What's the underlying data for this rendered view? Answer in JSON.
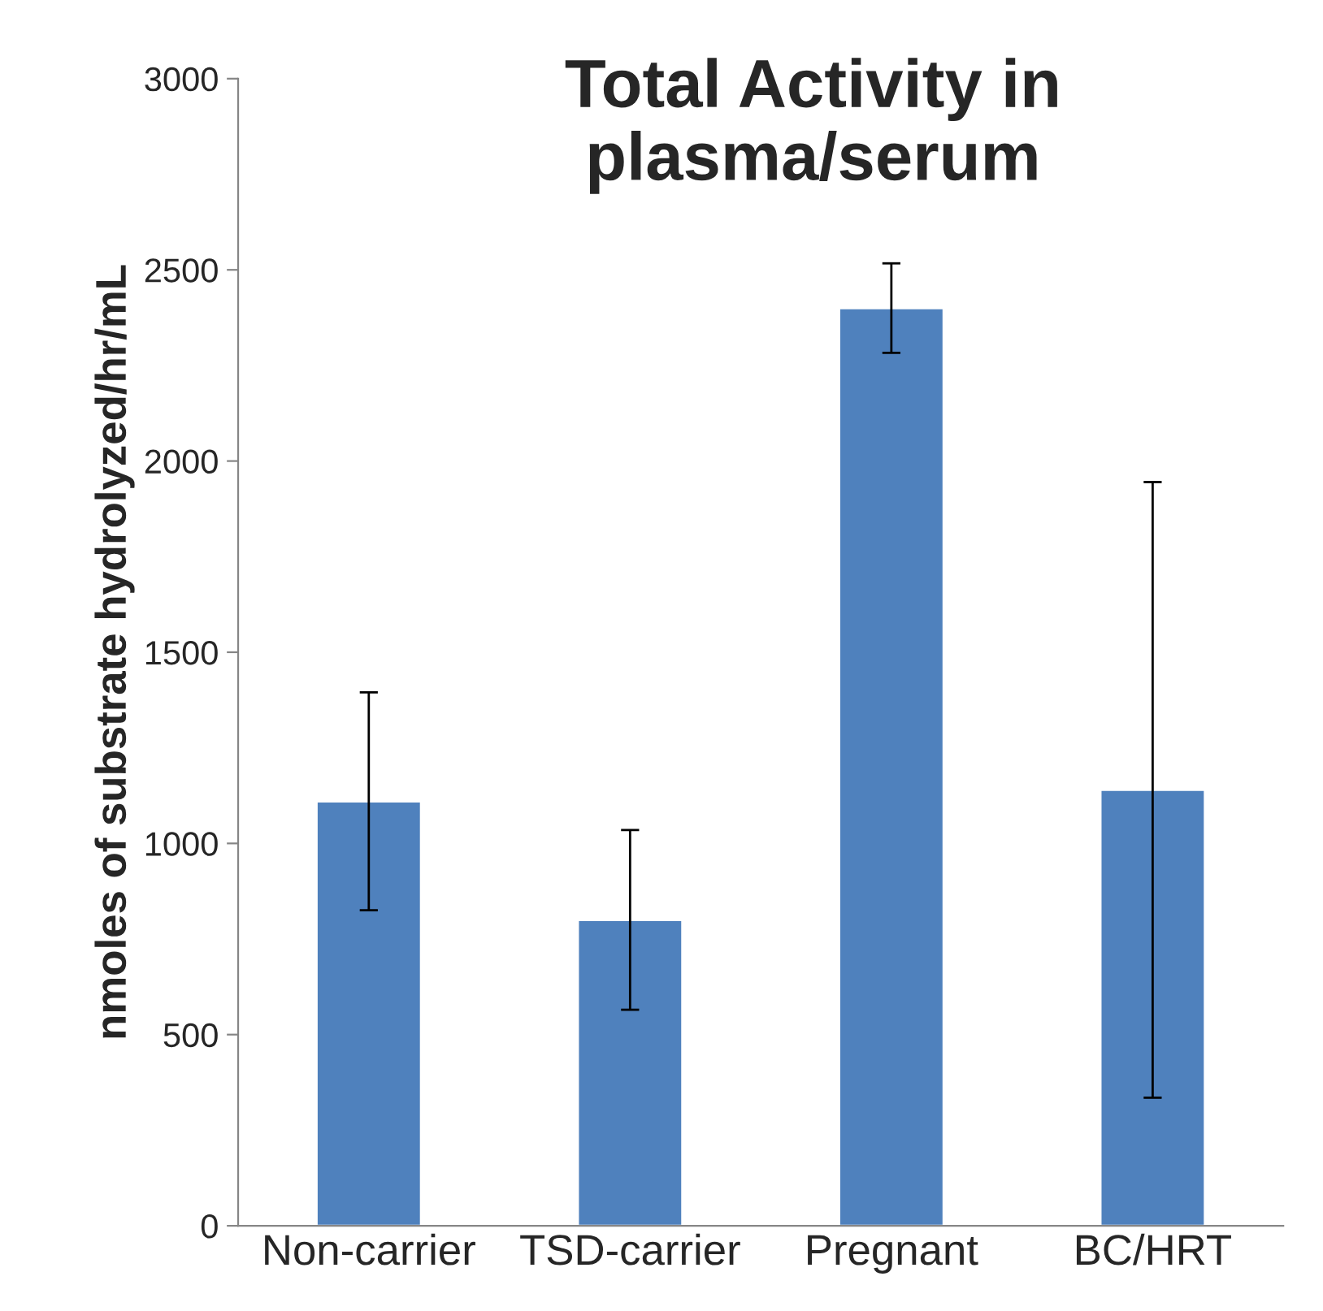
{
  "chart_data": {
    "type": "bar",
    "title": "Total Activity in\nplasma/serum",
    "ylabel": "nmoles of substrate hydrolyzed/hr/mL",
    "categories": [
      "Non-carrier",
      "TSD-carrier",
      "Pregnant",
      "BC/HRT"
    ],
    "values": [
      1110,
      800,
      2400,
      1140
    ],
    "errors": [
      285,
      235,
      117,
      805
    ],
    "color": "#4f81bd",
    "ylim": [
      0,
      3000
    ],
    "yticks": [
      0,
      500,
      1000,
      1500,
      2000,
      2500,
      3000
    ],
    "grid": false
  }
}
